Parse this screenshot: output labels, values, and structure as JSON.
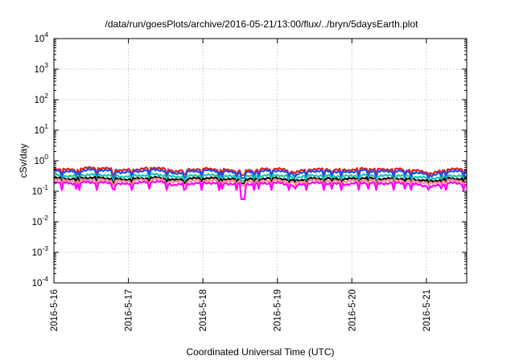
{
  "chart_data": {
    "type": "line",
    "title": "/data/run/goesPlots/archive/2016-05-21/13:00/flux/../bryn/5daysEarth.plot",
    "xlabel": "Coordinated Universal Time (UTC)",
    "ylabel": "cSv/day",
    "yscale": "log",
    "ylim": [
      0.0001,
      10000
    ],
    "xlim": [
      "2016-05-16T00:00",
      "2016-05-21T13:00"
    ],
    "grid": true,
    "y_ticks": [
      {
        "base": "10",
        "exp": "-4"
      },
      {
        "base": "10",
        "exp": "-3"
      },
      {
        "base": "10",
        "exp": "-2"
      },
      {
        "base": "10",
        "exp": "-1"
      },
      {
        "base": "10",
        "exp": "0"
      },
      {
        "base": "10",
        "exp": "1"
      },
      {
        "base": "10",
        "exp": "2"
      },
      {
        "base": "10",
        "exp": "3"
      },
      {
        "base": "10",
        "exp": "4"
      }
    ],
    "x_ticks": [
      "2016-5-16",
      "2016-5-17",
      "2016-5-18",
      "2016-5-19",
      "2016-5-20",
      "2016-5-21"
    ],
    "series": [
      {
        "color": "#e41a1c",
        "base": 0.52,
        "dip": 0.34,
        "values": [
          0.55,
          0.5,
          0.58,
          0.56,
          0.48,
          0.53,
          0.6,
          0.45,
          0.52,
          0.55,
          0.5,
          0.47,
          0.52,
          0.55,
          0.42,
          0.53,
          0.52,
          0.49,
          0.55,
          0.51,
          0.53,
          0.48,
          0.38,
          0.54,
          0.5
        ]
      },
      {
        "color": "#1f4fe8",
        "base": 0.45,
        "dip": 0.27,
        "values": [
          0.48,
          0.43,
          0.5,
          0.49,
          0.41,
          0.46,
          0.52,
          0.38,
          0.45,
          0.48,
          0.44,
          0.4,
          0.45,
          0.48,
          0.36,
          0.46,
          0.45,
          0.42,
          0.48,
          0.44,
          0.46,
          0.41,
          0.33,
          0.47,
          0.43
        ]
      },
      {
        "color": "#18c6b3",
        "base": 0.33,
        "dip": 0.22,
        "values": [
          0.34,
          0.31,
          0.35,
          0.34,
          0.3,
          0.33,
          0.36,
          0.29,
          0.32,
          0.34,
          0.31,
          0.3,
          0.32,
          0.34,
          0.28,
          0.33,
          0.32,
          0.31,
          0.34,
          0.32,
          0.33,
          0.3,
          0.26,
          0.33,
          0.31
        ]
      },
      {
        "color": "#000000",
        "base": 0.26,
        "dip": 0.18,
        "values": [
          0.27,
          0.25,
          0.28,
          0.27,
          0.24,
          0.26,
          0.28,
          0.23,
          0.26,
          0.27,
          0.25,
          0.24,
          0.26,
          0.27,
          0.22,
          0.26,
          0.26,
          0.25,
          0.27,
          0.25,
          0.26,
          0.24,
          0.21,
          0.26,
          0.25
        ]
      },
      {
        "color": "#ff8c8c",
        "base": 0.23,
        "dip": 0.15,
        "values": [
          0.24,
          0.22,
          0.24,
          0.23,
          0.21,
          0.23,
          0.25,
          0.2,
          0.22,
          0.23,
          0.22,
          0.21,
          0.22,
          0.23,
          0.19,
          0.23,
          0.22,
          0.21,
          0.23,
          0.22,
          0.23,
          0.21,
          0.18,
          0.23,
          0.21
        ]
      },
      {
        "color": "#ff00ff",
        "base": 0.19,
        "dip": 0.11,
        "values": [
          0.2,
          0.18,
          0.2,
          0.19,
          0.17,
          0.19,
          0.21,
          0.16,
          0.18,
          0.19,
          0.18,
          0.17,
          0.18,
          0.19,
          0.15,
          0.19,
          0.18,
          0.17,
          0.19,
          0.18,
          0.19,
          0.17,
          0.14,
          0.19,
          0.17
        ]
      }
    ],
    "event_dip": {
      "time": "2016-05-18T13:00",
      "value": 0.055
    }
  }
}
